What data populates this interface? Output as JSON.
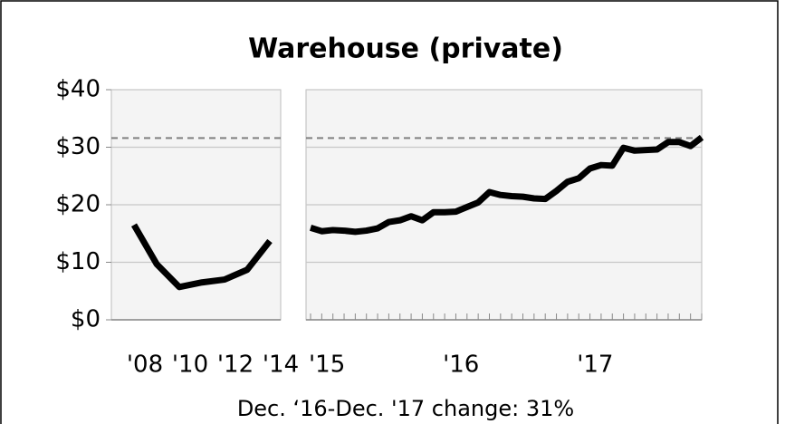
{
  "title": "Warehouse (private)",
  "note": "Dec. ‘16-Dec. '17 change: 31%",
  "chart_data": [
    {
      "type": "line",
      "color": "#000000",
      "grid": true,
      "reference_line": 31.6,
      "reference_color": "#808080",
      "ylim": [
        0,
        40
      ],
      "yticks": [
        {
          "value": 0,
          "label": "$0"
        },
        {
          "value": 10,
          "label": "$10"
        },
        {
          "value": 20,
          "label": "$20"
        },
        {
          "value": 30,
          "label": "$30"
        },
        {
          "value": 40,
          "label": "$40"
        }
      ],
      "categories": [
        "'08",
        null,
        "'10",
        null,
        "'12",
        null,
        "'14"
      ],
      "values": [
        16.5,
        9.7,
        5.7,
        6.5,
        7.0,
        8.7,
        13.7
      ]
    },
    {
      "type": "line",
      "color": "#000000",
      "grid": true,
      "reference_line": 31.6,
      "reference_color": "#808080",
      "ylim": [
        0,
        40
      ],
      "yticks": [
        0,
        10,
        20,
        30,
        40
      ],
      "categories": [
        "'15",
        null,
        null,
        null,
        null,
        null,
        null,
        null,
        null,
        null,
        null,
        null,
        "'16",
        null,
        null,
        null,
        null,
        null,
        null,
        null,
        null,
        null,
        null,
        null,
        "'17",
        null,
        null,
        null,
        null,
        null,
        null,
        null,
        null,
        null,
        null,
        null
      ],
      "values": [
        16.0,
        15.4,
        15.6,
        15.5,
        15.3,
        15.5,
        15.9,
        17.0,
        17.3,
        18.0,
        17.3,
        18.7,
        18.7,
        18.8,
        19.6,
        20.4,
        22.2,
        21.7,
        21.5,
        21.4,
        21.1,
        21.0,
        22.4,
        24.0,
        24.6,
        26.3,
        26.9,
        26.8,
        29.9,
        29.4,
        29.5,
        29.6,
        30.9,
        30.9,
        30.2,
        31.7
      ]
    }
  ]
}
